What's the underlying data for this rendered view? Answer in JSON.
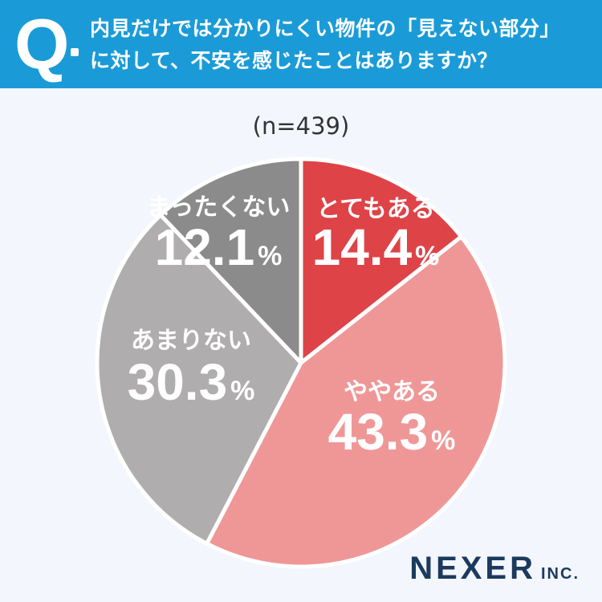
{
  "question": {
    "mark": "Q",
    "line1": "内見だけでは分かりにくい物件の「見えない部分」",
    "line2": "に対して、不安を感じたことはありますか？"
  },
  "sample_size": "(n=439)",
  "brand": {
    "name": "NEXER",
    "suffix": "INC."
  },
  "chart_data": {
    "type": "pie",
    "title": "",
    "slices": [
      {
        "label": "とてもある",
        "value": 14.4,
        "display": "14.4",
        "color": "#de4347",
        "text_color": "#ffffff"
      },
      {
        "label": "ややある",
        "value": 43.3,
        "display": "43.3",
        "color": "#ef9797",
        "text_color": "#ffffff"
      },
      {
        "label": "あまりない",
        "value": 30.3,
        "display": "30.3",
        "color": "#b0adae",
        "text_color": "#ffffff"
      },
      {
        "label": "まったくない",
        "value": 12.1,
        "display": "12.1",
        "color": "#8c8b8c",
        "text_color": "#ffffff"
      }
    ],
    "unit": "%",
    "start_angle_deg": 0,
    "direction": "clockwise"
  }
}
